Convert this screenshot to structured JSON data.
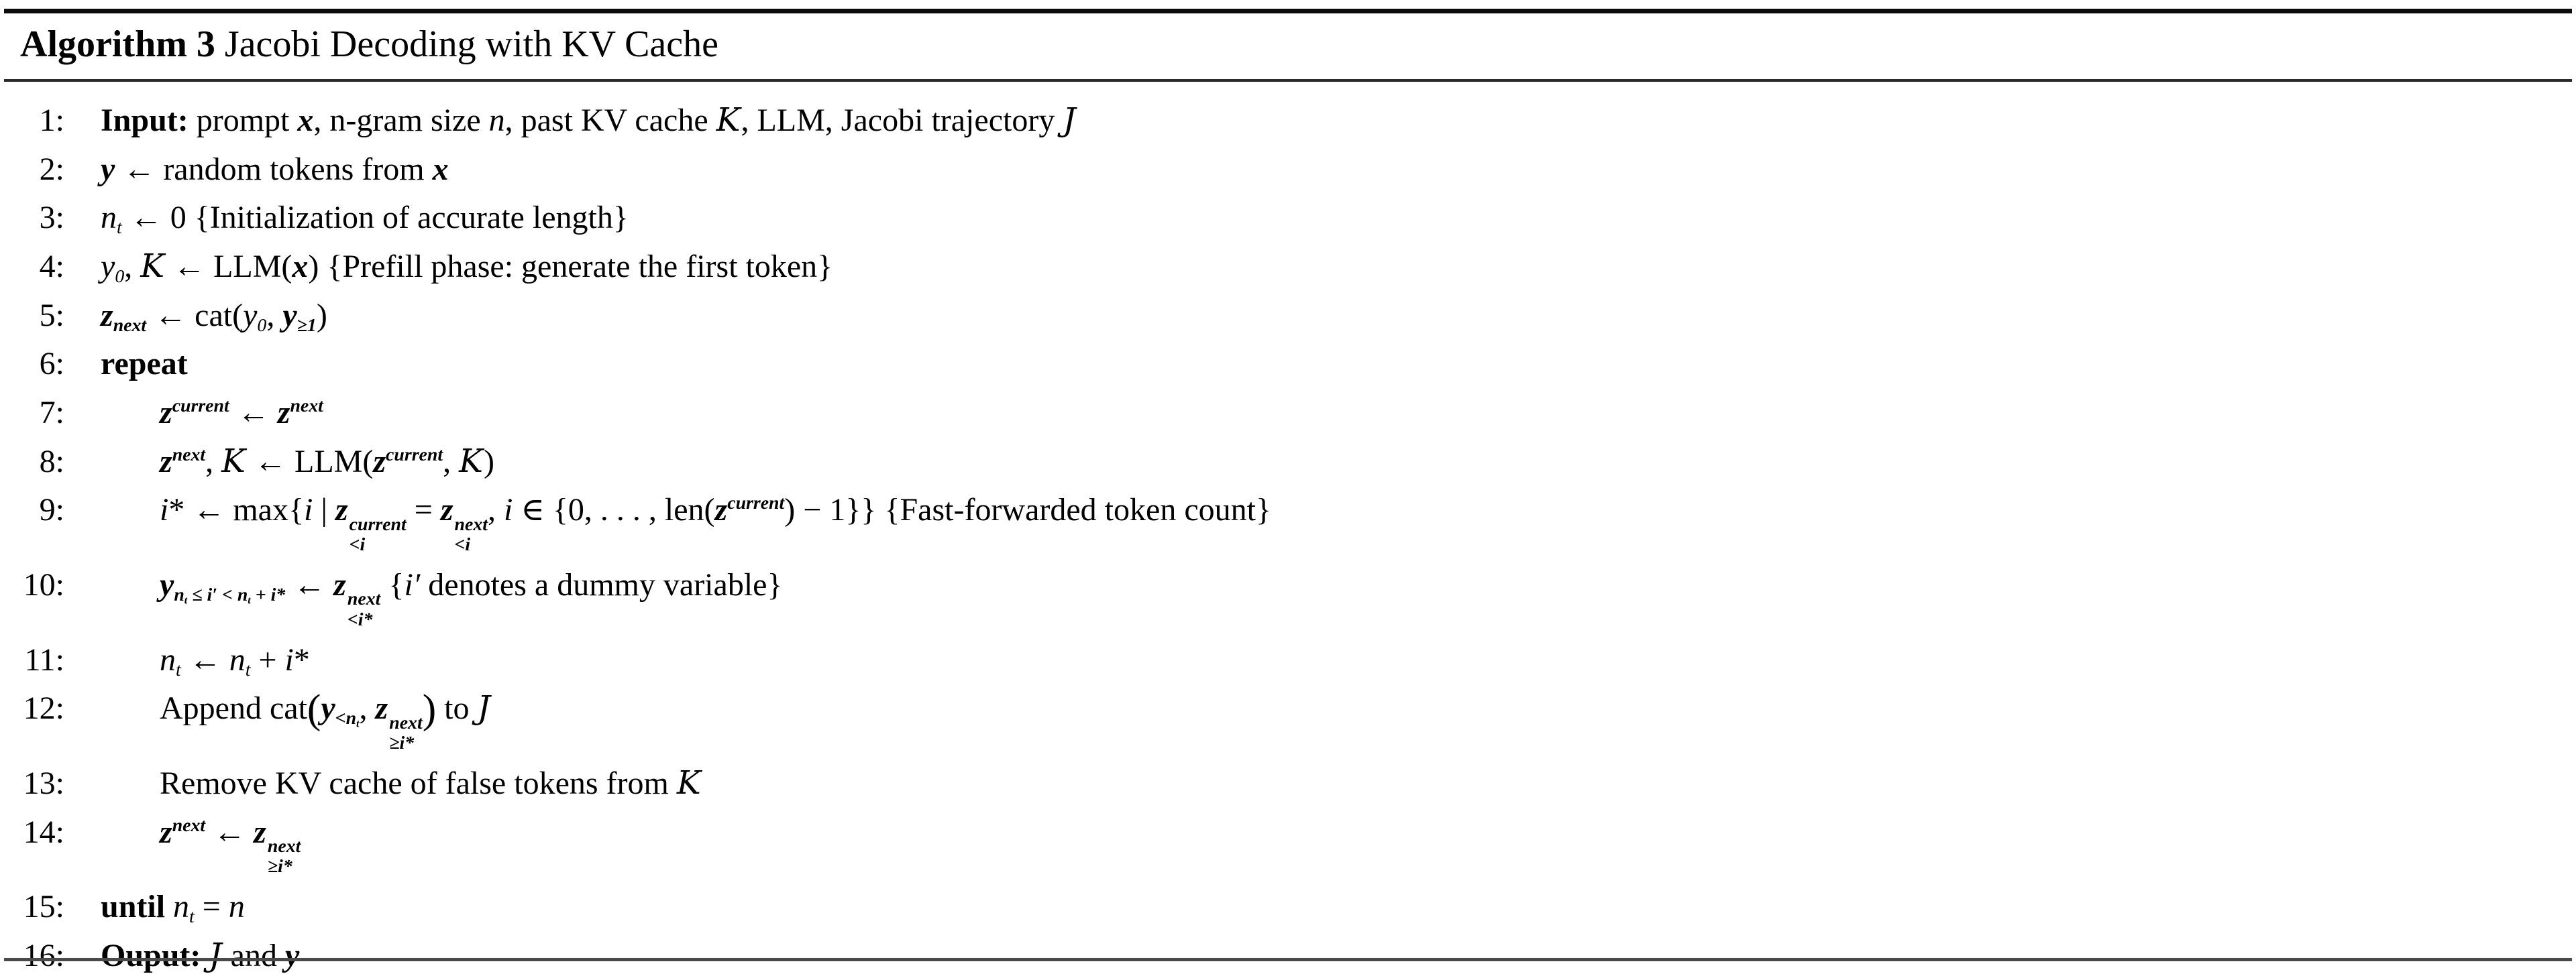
{
  "colors": {
    "background": "#ffffff",
    "text": "#000000",
    "rule": "#1b1b1b"
  },
  "title": {
    "label": "Algorithm 3",
    "text": " Jacobi Decoding with KV Cache"
  },
  "algorithm": {
    "lines": [
      {
        "num": "1:",
        "indent": 0,
        "segs": [
          {
            "t": "Input:",
            "b": 1
          },
          {
            "t": " prompt "
          },
          {
            "t": "x",
            "b": 1,
            "i": 1
          },
          {
            "t": ", n-gram size "
          },
          {
            "t": "n",
            "i": 1
          },
          {
            "t": ", past KV cache "
          },
          {
            "t": "K",
            "cal": 1
          },
          {
            "t": ", LLM, Jacobi trajectory "
          },
          {
            "t": "J",
            "cal": 1
          }
        ]
      },
      {
        "num": "2:",
        "indent": 0,
        "segs": [
          {
            "t": "y",
            "b": 1,
            "i": 1
          },
          {
            "t": " ← random tokens from "
          },
          {
            "t": "x",
            "b": 1,
            "i": 1
          }
        ]
      },
      {
        "num": "3:",
        "indent": 0,
        "segs": [
          {
            "t": "n",
            "i": 1,
            "sub": [
              {
                "t": "t",
                "i": 1
              }
            ]
          },
          {
            "t": " ← 0 {Initialization of accurate length}"
          }
        ]
      },
      {
        "num": "4:",
        "indent": 0,
        "segs": [
          {
            "t": "y",
            "i": 1,
            "sub": [
              {
                "t": "0"
              }
            ]
          },
          {
            "t": ", "
          },
          {
            "t": "K",
            "cal": 1
          },
          {
            "t": " ← LLM("
          },
          {
            "t": "x",
            "b": 1,
            "i": 1
          },
          {
            "t": ") {Prefill phase: generate the first token}"
          }
        ]
      },
      {
        "num": "5:",
        "indent": 0,
        "segs": [
          {
            "t": "z",
            "b": 1,
            "i": 1,
            "sub": [
              {
                "t": "next"
              }
            ]
          },
          {
            "t": " ← cat("
          },
          {
            "t": "y",
            "i": 1,
            "sub": [
              {
                "t": "0"
              }
            ]
          },
          {
            "t": ", "
          },
          {
            "t": "y",
            "b": 1,
            "i": 1,
            "sub": [
              {
                "t": "≥1"
              }
            ]
          },
          {
            "t": ")"
          }
        ]
      },
      {
        "num": "6:",
        "indent": 0,
        "segs": [
          {
            "t": "repeat",
            "b": 1
          }
        ]
      },
      {
        "num": "7:",
        "indent": 1,
        "segs": [
          {
            "t": "z",
            "b": 1,
            "i": 1,
            "sup": [
              {
                "t": "current"
              }
            ]
          },
          {
            "t": " ← "
          },
          {
            "t": "z",
            "b": 1,
            "i": 1,
            "sup": [
              {
                "t": "next"
              }
            ]
          }
        ]
      },
      {
        "num": "8:",
        "indent": 1,
        "segs": [
          {
            "t": "z",
            "b": 1,
            "i": 1,
            "sup": [
              {
                "t": "next"
              }
            ]
          },
          {
            "t": ", "
          },
          {
            "t": "K",
            "cal": 1
          },
          {
            "t": " ← LLM("
          },
          {
            "t": "z",
            "b": 1,
            "i": 1,
            "sup": [
              {
                "t": "current"
              }
            ]
          },
          {
            "t": ", "
          },
          {
            "t": "K",
            "cal": 1
          },
          {
            "t": ")"
          }
        ]
      },
      {
        "num": "9:",
        "indent": 1,
        "segs": [
          {
            "t": "i",
            "i": 1
          },
          {
            "t": "*"
          },
          {
            "t": " ← max{"
          },
          {
            "t": "i",
            "i": 1
          },
          {
            "t": " | "
          },
          {
            "t": "z",
            "b": 1,
            "i": 1,
            "sup": [
              {
                "t": "current"
              }
            ],
            "sub": [
              {
                "t": "<"
              },
              {
                "t": "i",
                "i": 1
              }
            ]
          },
          {
            "t": " = "
          },
          {
            "t": "z",
            "b": 1,
            "i": 1,
            "sup": [
              {
                "t": "next"
              }
            ],
            "sub": [
              {
                "t": "<"
              },
              {
                "t": "i",
                "i": 1
              }
            ]
          },
          {
            "t": ", "
          },
          {
            "t": "i",
            "i": 1
          },
          {
            "t": " ∈ {0, . . . , len("
          },
          {
            "t": "z",
            "b": 1,
            "i": 1,
            "sup": [
              {
                "t": "current"
              }
            ]
          },
          {
            "t": ") − 1}} {Fast-forwarded token count}"
          }
        ]
      },
      {
        "num": "10:",
        "indent": 1,
        "segs": [
          {
            "t": "y",
            "b": 1,
            "i": 1,
            "sub": [
              {
                "t": "n",
                "i": 1,
                "sub": [
                  {
                    "t": "t",
                    "i": 1
                  }
                ]
              },
              {
                "t": " ≤ "
              },
              {
                "t": "i′",
                "i": 1
              },
              {
                "t": " < "
              },
              {
                "t": "n",
                "i": 1,
                "sub": [
                  {
                    "t": "t",
                    "i": 1
                  }
                ]
              },
              {
                "t": " + "
              },
              {
                "t": "i",
                "i": 1
              },
              {
                "t": "*"
              }
            ]
          },
          {
            "t": " ← "
          },
          {
            "t": "z",
            "b": 1,
            "i": 1,
            "sup": [
              {
                "t": "next"
              }
            ],
            "sub": [
              {
                "t": "<"
              },
              {
                "t": "i",
                "i": 1
              },
              {
                "t": "*"
              }
            ]
          },
          {
            "t": " {"
          },
          {
            "t": "i′",
            "i": 1
          },
          {
            "t": " denotes a dummy variable}"
          }
        ]
      },
      {
        "num": "11:",
        "indent": 1,
        "segs": [
          {
            "t": "n",
            "i": 1,
            "sub": [
              {
                "t": "t",
                "i": 1
              }
            ]
          },
          {
            "t": " ← "
          },
          {
            "t": "n",
            "i": 1,
            "sub": [
              {
                "t": "t",
                "i": 1
              }
            ]
          },
          {
            "t": " + "
          },
          {
            "t": "i",
            "i": 1
          },
          {
            "t": "*"
          }
        ]
      },
      {
        "num": "12:",
        "indent": 1,
        "segs": [
          {
            "t": "Append cat"
          },
          {
            "t": "(",
            "big": 1
          },
          {
            "t": "y",
            "b": 1,
            "i": 1,
            "sub": [
              {
                "t": "<"
              },
              {
                "t": "n",
                "i": 1,
                "sub": [
                  {
                    "t": "t",
                    "i": 1
                  }
                ]
              }
            ]
          },
          {
            "t": ", "
          },
          {
            "t": "z",
            "b": 1,
            "i": 1,
            "sup": [
              {
                "t": "next"
              }
            ],
            "sub": [
              {
                "t": "≥"
              },
              {
                "t": "i",
                "i": 1
              },
              {
                "t": "*"
              }
            ]
          },
          {
            "t": ")",
            "big": 1
          },
          {
            "t": " to "
          },
          {
            "t": "J",
            "cal": 1
          }
        ]
      },
      {
        "num": "13:",
        "indent": 1,
        "segs": [
          {
            "t": "Remove KV cache of false tokens from "
          },
          {
            "t": "K",
            "cal": 1
          }
        ]
      },
      {
        "num": "14:",
        "indent": 1,
        "segs": [
          {
            "t": "z",
            "b": 1,
            "i": 1,
            "sup": [
              {
                "t": "next"
              }
            ]
          },
          {
            "t": " ← "
          },
          {
            "t": "z",
            "b": 1,
            "i": 1,
            "sup": [
              {
                "t": "next"
              }
            ],
            "sub": [
              {
                "t": "≥"
              },
              {
                "t": "i",
                "i": 1
              },
              {
                "t": "*"
              }
            ]
          }
        ]
      },
      {
        "num": "15:",
        "indent": 0,
        "segs": [
          {
            "t": "until ",
            "b": 1
          },
          {
            "t": "n",
            "i": 1,
            "sub": [
              {
                "t": "t",
                "i": 1
              }
            ]
          },
          {
            "t": " = "
          },
          {
            "t": "n",
            "i": 1
          }
        ]
      },
      {
        "num": "16:",
        "indent": 0,
        "segs": [
          {
            "t": "Ouput: ",
            "b": 1
          },
          {
            "t": "J",
            "cal": 1
          },
          {
            "t": " and "
          },
          {
            "t": "y",
            "b": 1,
            "i": 1
          }
        ]
      }
    ]
  }
}
